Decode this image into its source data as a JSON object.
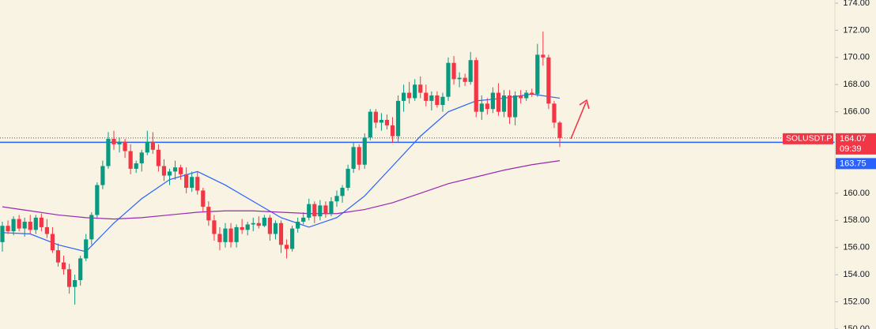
{
  "chart_data": {
    "type": "candlestick",
    "symbol": "SOLUSDT.P",
    "countdown": "09:39",
    "up_color": "#089981",
    "down_color": "#f23645",
    "ylim": [
      150,
      174.23
    ],
    "yticks": [
      {
        "value": 150,
        "label": "150.00"
      },
      {
        "value": 152,
        "label": "152.00"
      },
      {
        "value": 154,
        "label": "154.00"
      },
      {
        "value": 156,
        "label": "156.00"
      },
      {
        "value": 158,
        "label": "158.00"
      },
      {
        "value": 160,
        "label": "160.00"
      },
      {
        "value": 162,
        "label": "162.00"
      },
      {
        "value": 164,
        "label": "164.00"
      },
      {
        "value": 166,
        "label": "166.00"
      },
      {
        "value": 168,
        "label": "168.00"
      },
      {
        "value": 170,
        "label": "170.00"
      },
      {
        "value": 172,
        "label": "172.00"
      },
      {
        "value": 174,
        "label": "174.00"
      }
    ],
    "last_price": 164.07,
    "price_line": {
      "value": 163.75,
      "color": "#2962ff"
    },
    "candles": [
      [
        156.4,
        157.9,
        155.7,
        157.6
      ],
      [
        157.6,
        158.0,
        157.0,
        157.2
      ],
      [
        157.2,
        158.3,
        156.9,
        158.1
      ],
      [
        158.1,
        158.4,
        157.2,
        157.4
      ],
      [
        157.4,
        158.2,
        156.8,
        157.9
      ],
      [
        157.9,
        158.4,
        157.0,
        157.3
      ],
      [
        157.3,
        158.4,
        157.0,
        158.2
      ],
      [
        158.2,
        158.5,
        157.2,
        157.5
      ],
      [
        157.5,
        158.1,
        156.7,
        157.0
      ],
      [
        157.0,
        157.5,
        155.6,
        155.8
      ],
      [
        155.8,
        156.3,
        154.6,
        154.9
      ],
      [
        154.9,
        155.4,
        154.0,
        154.4
      ],
      [
        154.4,
        154.8,
        152.6,
        153.1
      ],
      [
        153.1,
        154.0,
        151.8,
        153.6
      ],
      [
        153.6,
        155.4,
        153.2,
        155.2
      ],
      [
        155.2,
        157.0,
        155.0,
        156.6
      ],
      [
        156.6,
        158.6,
        156.2,
        158.4
      ],
      [
        158.4,
        160.8,
        158.2,
        160.6
      ],
      [
        160.6,
        162.4,
        160.3,
        162.0
      ],
      [
        162.0,
        164.5,
        161.8,
        164.0
      ],
      [
        164.0,
        164.6,
        163.2,
        163.6
      ],
      [
        163.6,
        164.1,
        163.0,
        163.8
      ],
      [
        163.8,
        164.0,
        162.6,
        163.1
      ],
      [
        163.1,
        163.6,
        161.4,
        161.8
      ],
      [
        161.8,
        162.4,
        161.5,
        162.2
      ],
      [
        162.2,
        163.2,
        161.6,
        163.0
      ],
      [
        163.0,
        164.6,
        162.8,
        163.8
      ],
      [
        163.8,
        164.5,
        162.9,
        163.2
      ],
      [
        163.2,
        163.6,
        161.6,
        162.0
      ],
      [
        162.0,
        162.5,
        160.9,
        161.3
      ],
      [
        161.3,
        161.8,
        160.6,
        161.6
      ],
      [
        161.6,
        162.4,
        161.0,
        161.9
      ],
      [
        161.9,
        162.1,
        161.0,
        161.4
      ],
      [
        161.4,
        161.9,
        160.0,
        160.4
      ],
      [
        160.4,
        161.6,
        160.1,
        161.2
      ],
      [
        161.2,
        161.6,
        159.9,
        160.2
      ],
      [
        160.2,
        160.4,
        158.6,
        159.0
      ],
      [
        159.0,
        159.4,
        157.6,
        158.0
      ],
      [
        158.0,
        158.4,
        156.5,
        157.0
      ],
      [
        157.0,
        157.5,
        155.8,
        156.4
      ],
      [
        156.4,
        157.8,
        156.0,
        157.4
      ],
      [
        157.4,
        157.8,
        156.0,
        156.4
      ],
      [
        156.4,
        157.7,
        156.0,
        157.5
      ],
      [
        157.5,
        158.1,
        157.0,
        157.3
      ],
      [
        157.3,
        157.9,
        156.9,
        157.7
      ],
      [
        157.7,
        158.2,
        157.2,
        157.8
      ],
      [
        157.8,
        158.3,
        157.4,
        157.6
      ],
      [
        157.6,
        158.4,
        157.5,
        158.2
      ],
      [
        158.2,
        158.4,
        156.5,
        157.0
      ],
      [
        157.0,
        158.0,
        156.6,
        157.8
      ],
      [
        157.8,
        158.0,
        155.6,
        156.2
      ],
      [
        156.2,
        156.6,
        155.2,
        155.9
      ],
      [
        155.9,
        157.6,
        155.7,
        157.4
      ],
      [
        157.4,
        158.2,
        157.1,
        157.9
      ],
      [
        157.9,
        158.6,
        157.7,
        158.2
      ],
      [
        158.2,
        159.6,
        158.0,
        159.2
      ],
      [
        159.2,
        159.4,
        157.8,
        158.3
      ],
      [
        158.3,
        159.5,
        158.0,
        159.1
      ],
      [
        159.1,
        159.4,
        158.2,
        158.5
      ],
      [
        158.5,
        159.7,
        158.3,
        159.4
      ],
      [
        159.4,
        160.2,
        159.0,
        159.8
      ],
      [
        159.8,
        160.6,
        159.3,
        160.4
      ],
      [
        160.4,
        162.1,
        160.2,
        161.8
      ],
      [
        161.8,
        163.8,
        161.5,
        163.4
      ],
      [
        163.4,
        163.6,
        161.7,
        162.1
      ],
      [
        162.1,
        164.4,
        161.8,
        164.1
      ],
      [
        164.1,
        166.2,
        163.9,
        166.0
      ],
      [
        166.0,
        166.2,
        164.8,
        165.2
      ],
      [
        165.2,
        165.9,
        164.6,
        165.4
      ],
      [
        165.4,
        165.8,
        164.7,
        165.0
      ],
      [
        165.0,
        165.6,
        163.7,
        164.2
      ],
      [
        164.2,
        167.2,
        163.8,
        166.8
      ],
      [
        166.8,
        168.0,
        166.0,
        167.4
      ],
      [
        167.4,
        168.2,
        166.6,
        167.0
      ],
      [
        167.0,
        168.4,
        166.8,
        168.0
      ],
      [
        168.0,
        168.6,
        167.0,
        167.4
      ],
      [
        167.4,
        168.0,
        166.4,
        166.8
      ],
      [
        166.8,
        167.5,
        166.1,
        167.2
      ],
      [
        167.2,
        167.5,
        166.3,
        166.5
      ],
      [
        166.5,
        167.4,
        166.0,
        167.1
      ],
      [
        167.1,
        170.0,
        166.8,
        169.6
      ],
      [
        169.6,
        170.1,
        168.0,
        168.4
      ],
      [
        168.4,
        168.9,
        167.8,
        168.5
      ],
      [
        168.5,
        168.8,
        167.9,
        168.2
      ],
      [
        168.2,
        170.4,
        168.0,
        169.8
      ],
      [
        169.8,
        170.0,
        165.6,
        166.0
      ],
      [
        166.0,
        167.2,
        165.4,
        166.6
      ],
      [
        166.6,
        167.0,
        165.8,
        166.2
      ],
      [
        166.2,
        167.8,
        165.9,
        167.4
      ],
      [
        167.4,
        168.1,
        165.7,
        166.0
      ],
      [
        166.0,
        167.6,
        165.6,
        167.2
      ],
      [
        167.2,
        167.6,
        165.1,
        165.6
      ],
      [
        165.6,
        167.5,
        165.0,
        167.2
      ],
      [
        167.2,
        167.6,
        166.6,
        167.0
      ],
      [
        167.0,
        167.6,
        166.8,
        167.4
      ],
      [
        167.4,
        167.7,
        167.1,
        167.3
      ],
      [
        167.3,
        171.0,
        167.1,
        170.2
      ],
      [
        170.2,
        171.9,
        169.4,
        170.0
      ],
      [
        170.0,
        170.2,
        166.2,
        166.6
      ],
      [
        166.6,
        166.8,
        164.8,
        165.2
      ],
      [
        165.2,
        165.3,
        163.4,
        164.07
      ]
    ],
    "series": [
      {
        "color": "#2962ff",
        "x": [
          0,
          5,
          10,
          15,
          20,
          25,
          30,
          35,
          40,
          45,
          50,
          55,
          60,
          65,
          70,
          75,
          80,
          85,
          90,
          95,
          100
        ],
        "values": [
          157.1,
          157.0,
          156.2,
          155.7,
          157.8,
          159.6,
          161.0,
          161.6,
          160.6,
          159.4,
          158.2,
          157.5,
          158.2,
          159.8,
          162.0,
          164.2,
          166.0,
          166.8,
          167.0,
          167.3,
          167.0
        ]
      },
      {
        "color": "#9c27b0",
        "x": [
          0,
          5,
          10,
          15,
          20,
          25,
          30,
          35,
          40,
          45,
          50,
          55,
          60,
          65,
          70,
          75,
          80,
          85,
          90,
          95,
          100
        ],
        "values": [
          159.0,
          158.7,
          158.4,
          158.2,
          158.1,
          158.2,
          158.4,
          158.6,
          158.7,
          158.7,
          158.6,
          158.5,
          158.5,
          158.8,
          159.3,
          160.0,
          160.7,
          161.2,
          161.7,
          162.1,
          162.4
        ]
      }
    ]
  }
}
